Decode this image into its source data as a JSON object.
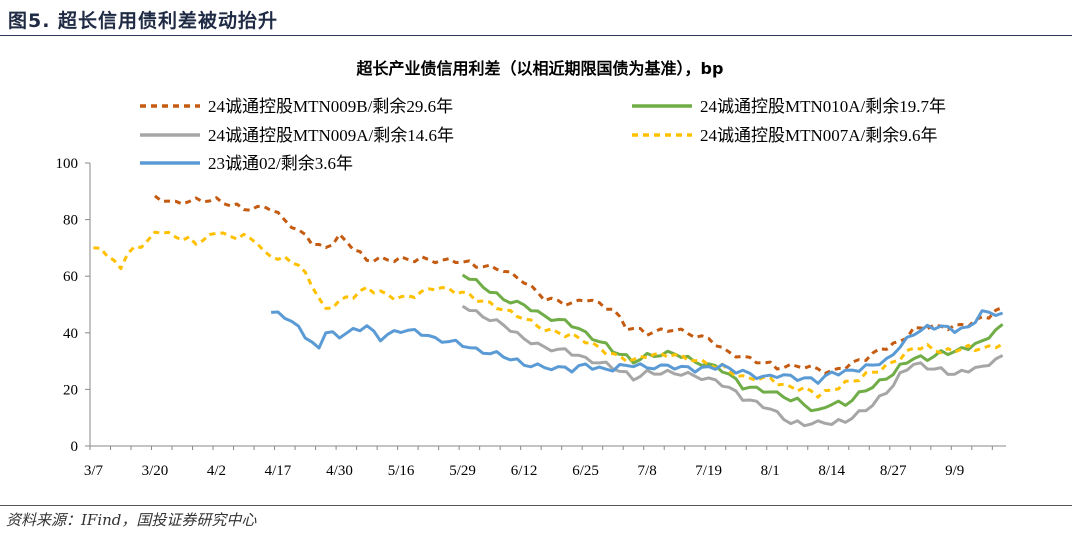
{
  "figure": {
    "title": "图5. 超长信用债利差被动抬升",
    "source": "资料来源：IFind，国投证券研究中心"
  },
  "chart_data": {
    "type": "line",
    "title": "超长产业债信用利差（以相近期限国债为基准），bp",
    "xlabel": "",
    "ylabel": "",
    "ylim": [
      0,
      100
    ],
    "yticks": [
      0,
      20,
      40,
      60,
      80,
      100
    ],
    "x_tick_labels": [
      "3/7",
      "3/20",
      "4/2",
      "4/17",
      "4/30",
      "5/16",
      "5/29",
      "6/12",
      "6/25",
      "7/8",
      "7/19",
      "8/1",
      "8/14",
      "8/27",
      "9/9"
    ],
    "x_tick_index": [
      0,
      9,
      18,
      27,
      36,
      45,
      54,
      63,
      72,
      81,
      90,
      99,
      108,
      117,
      126
    ],
    "n_points": 134,
    "legend_position": "top",
    "series": [
      {
        "name": "24诚通控股MTN009B/剩余29.6年",
        "color": "#c55a11",
        "dash": "6,5",
        "knots": [
          [
            9,
            88
          ],
          [
            12,
            86
          ],
          [
            15,
            87
          ],
          [
            18,
            87
          ],
          [
            22,
            84
          ],
          [
            26,
            84
          ],
          [
            28,
            80
          ],
          [
            32,
            72
          ],
          [
            34,
            70
          ],
          [
            36,
            74
          ],
          [
            38,
            70
          ],
          [
            40,
            66
          ],
          [
            42,
            66
          ],
          [
            45,
            66
          ],
          [
            48,
            66
          ],
          [
            54,
            65
          ],
          [
            56,
            64
          ],
          [
            60,
            62
          ],
          [
            63,
            58
          ],
          [
            66,
            52
          ],
          [
            70,
            50
          ],
          [
            72,
            52
          ],
          [
            76,
            48
          ],
          [
            78,
            42
          ],
          [
            81,
            40
          ],
          [
            85,
            41
          ],
          [
            90,
            38
          ],
          [
            93,
            33
          ],
          [
            96,
            31
          ],
          [
            100,
            28
          ],
          [
            104,
            28
          ],
          [
            108,
            26
          ],
          [
            110,
            28
          ],
          [
            113,
            31
          ],
          [
            116,
            35
          ],
          [
            118,
            37
          ],
          [
            120,
            41
          ],
          [
            122,
            42
          ],
          [
            126,
            42
          ],
          [
            128,
            43
          ],
          [
            131,
            46
          ],
          [
            133,
            49
          ]
        ]
      },
      {
        "name": "24诚通控股MTN010A/剩余19.7年",
        "color": "#70ad47",
        "dash": "",
        "knots": [
          [
            54,
            61
          ],
          [
            56,
            58
          ],
          [
            60,
            52
          ],
          [
            63,
            50
          ],
          [
            66,
            46
          ],
          [
            70,
            43
          ],
          [
            72,
            40
          ],
          [
            76,
            34
          ],
          [
            79,
            30
          ],
          [
            81,
            32
          ],
          [
            85,
            33
          ],
          [
            88,
            30
          ],
          [
            92,
            27
          ],
          [
            95,
            21
          ],
          [
            99,
            19
          ],
          [
            103,
            16
          ],
          [
            106,
            12
          ],
          [
            108,
            15
          ],
          [
            110,
            15
          ],
          [
            113,
            20
          ],
          [
            116,
            24
          ],
          [
            118,
            28
          ],
          [
            120,
            31
          ],
          [
            122,
            31
          ],
          [
            124,
            33
          ],
          [
            126,
            33
          ],
          [
            128,
            35
          ],
          [
            130,
            37
          ],
          [
            133,
            43
          ]
        ]
      },
      {
        "name": "24诚通控股MTN009A/剩余14.6年",
        "color": "#a6a6a6",
        "dash": "",
        "knots": [
          [
            54,
            50
          ],
          [
            56,
            47
          ],
          [
            60,
            43
          ],
          [
            63,
            38
          ],
          [
            66,
            35
          ],
          [
            70,
            33
          ],
          [
            72,
            31
          ],
          [
            76,
            28
          ],
          [
            79,
            24
          ],
          [
            81,
            26
          ],
          [
            85,
            26
          ],
          [
            88,
            25
          ],
          [
            92,
            22
          ],
          [
            95,
            17
          ],
          [
            99,
            13
          ],
          [
            102,
            8
          ],
          [
            104,
            8
          ],
          [
            108,
            8
          ],
          [
            110,
            9
          ],
          [
            113,
            13
          ],
          [
            116,
            19
          ],
          [
            118,
            25
          ],
          [
            120,
            29
          ],
          [
            122,
            28
          ],
          [
            124,
            27
          ],
          [
            126,
            25
          ],
          [
            128,
            27
          ],
          [
            130,
            28
          ],
          [
            133,
            32
          ]
        ]
      },
      {
        "name": "24诚通控股MTN007A/剩余9.6年",
        "color": "#ffc000",
        "dash": "6,5",
        "knots": [
          [
            0,
            70
          ],
          [
            2,
            68
          ],
          [
            3,
            65
          ],
          [
            4,
            63
          ],
          [
            5,
            68
          ],
          [
            7,
            71
          ],
          [
            9,
            75
          ],
          [
            10,
            76
          ],
          [
            12,
            74
          ],
          [
            14,
            73
          ],
          [
            15,
            72
          ],
          [
            17,
            74
          ],
          [
            18,
            76
          ],
          [
            20,
            74
          ],
          [
            22,
            74
          ],
          [
            24,
            72
          ],
          [
            25,
            68
          ],
          [
            28,
            66
          ],
          [
            30,
            64
          ],
          [
            32,
            57
          ],
          [
            34,
            48
          ],
          [
            36,
            51
          ],
          [
            38,
            53
          ],
          [
            40,
            56
          ],
          [
            42,
            54
          ],
          [
            45,
            52
          ],
          [
            48,
            54
          ],
          [
            50,
            56
          ],
          [
            54,
            54
          ],
          [
            56,
            52
          ],
          [
            60,
            48
          ],
          [
            63,
            45
          ],
          [
            66,
            41
          ],
          [
            70,
            39
          ],
          [
            72,
            37
          ],
          [
            76,
            32
          ],
          [
            79,
            30
          ],
          [
            81,
            32
          ],
          [
            85,
            32
          ],
          [
            88,
            30
          ],
          [
            92,
            28
          ],
          [
            95,
            24
          ],
          [
            99,
            24
          ],
          [
            101,
            21
          ],
          [
            104,
            20
          ],
          [
            106,
            18
          ],
          [
            108,
            20
          ],
          [
            110,
            22
          ],
          [
            113,
            25
          ],
          [
            116,
            28
          ],
          [
            118,
            31
          ],
          [
            120,
            35
          ],
          [
            122,
            35
          ],
          [
            124,
            33
          ],
          [
            126,
            34
          ],
          [
            128,
            35
          ],
          [
            130,
            34
          ],
          [
            133,
            36
          ]
        ]
      },
      {
        "name": "23诚通02/剩余3.6年",
        "color": "#5b9bd5",
        "dash": "",
        "knots": [
          [
            26,
            47
          ],
          [
            28,
            46
          ],
          [
            30,
            42
          ],
          [
            32,
            36
          ],
          [
            33,
            35
          ],
          [
            34,
            40
          ],
          [
            36,
            39
          ],
          [
            38,
            41
          ],
          [
            40,
            42
          ],
          [
            42,
            38
          ],
          [
            45,
            41
          ],
          [
            48,
            40
          ],
          [
            50,
            38
          ],
          [
            54,
            36
          ],
          [
            56,
            34
          ],
          [
            60,
            32
          ],
          [
            63,
            29
          ],
          [
            66,
            28
          ],
          [
            70,
            27
          ],
          [
            72,
            29
          ],
          [
            74,
            27
          ],
          [
            76,
            27
          ],
          [
            78,
            29
          ],
          [
            81,
            28
          ],
          [
            85,
            28
          ],
          [
            88,
            27
          ],
          [
            90,
            28
          ],
          [
            92,
            28
          ],
          [
            95,
            26
          ],
          [
            98,
            24
          ],
          [
            100,
            25
          ],
          [
            103,
            24
          ],
          [
            106,
            23
          ],
          [
            108,
            26
          ],
          [
            110,
            26
          ],
          [
            112,
            27
          ],
          [
            114,
            29
          ],
          [
            116,
            30
          ],
          [
            118,
            35
          ],
          [
            120,
            40
          ],
          [
            122,
            42
          ],
          [
            124,
            42
          ],
          [
            126,
            41
          ],
          [
            128,
            42
          ],
          [
            130,
            47
          ],
          [
            133,
            47
          ]
        ]
      }
    ]
  }
}
